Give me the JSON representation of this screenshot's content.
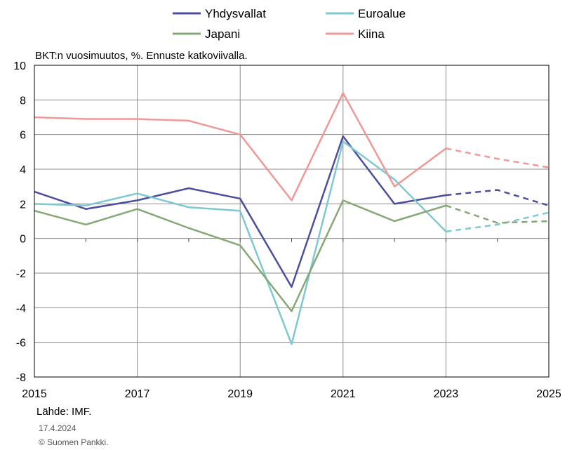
{
  "subtitle": "BKT:n vuosimuutos, %. Ennuste katkoviivalla.",
  "source": "Lähde: IMF.",
  "date": "17.4.2024",
  "copyright": "© Suomen Pankki.",
  "chart_data": {
    "type": "line",
    "x": [
      2015,
      2016,
      2017,
      2018,
      2019,
      2020,
      2021,
      2022,
      2023,
      2024,
      2025
    ],
    "x_tick_labels": [
      "2015",
      "2017",
      "2019",
      "2021",
      "2023",
      "2025"
    ],
    "y_tick_labels": [
      "10",
      "8",
      "6",
      "4",
      "2",
      "0",
      "-2",
      "-4",
      "-6",
      "-8"
    ],
    "ylim": [
      -8,
      10
    ],
    "xlim": [
      2015,
      2025
    ],
    "grid": true,
    "forecast_start": 2023,
    "forecast_style": "dashed",
    "legend_position": "top",
    "series": [
      {
        "name": "Yhdysvallat",
        "color": "#4c4f9e",
        "values": [
          2.7,
          1.7,
          2.2,
          2.9,
          2.3,
          -2.8,
          5.9,
          2.0,
          2.5,
          2.8,
          1.9
        ]
      },
      {
        "name": "Euroalue",
        "color": "#7ec9d1",
        "values": [
          2.0,
          1.9,
          2.6,
          1.8,
          1.6,
          -6.1,
          5.6,
          3.4,
          0.4,
          0.8,
          1.5
        ]
      },
      {
        "name": "Japani",
        "color": "#86a874",
        "values": [
          1.6,
          0.8,
          1.7,
          0.6,
          -0.4,
          -4.2,
          2.2,
          1.0,
          1.9,
          0.9,
          1.0
        ]
      },
      {
        "name": "Kiina",
        "color": "#f09898",
        "values": [
          7.0,
          6.9,
          6.9,
          6.8,
          6.0,
          2.2,
          8.4,
          3.0,
          5.2,
          4.6,
          4.1
        ]
      }
    ]
  }
}
